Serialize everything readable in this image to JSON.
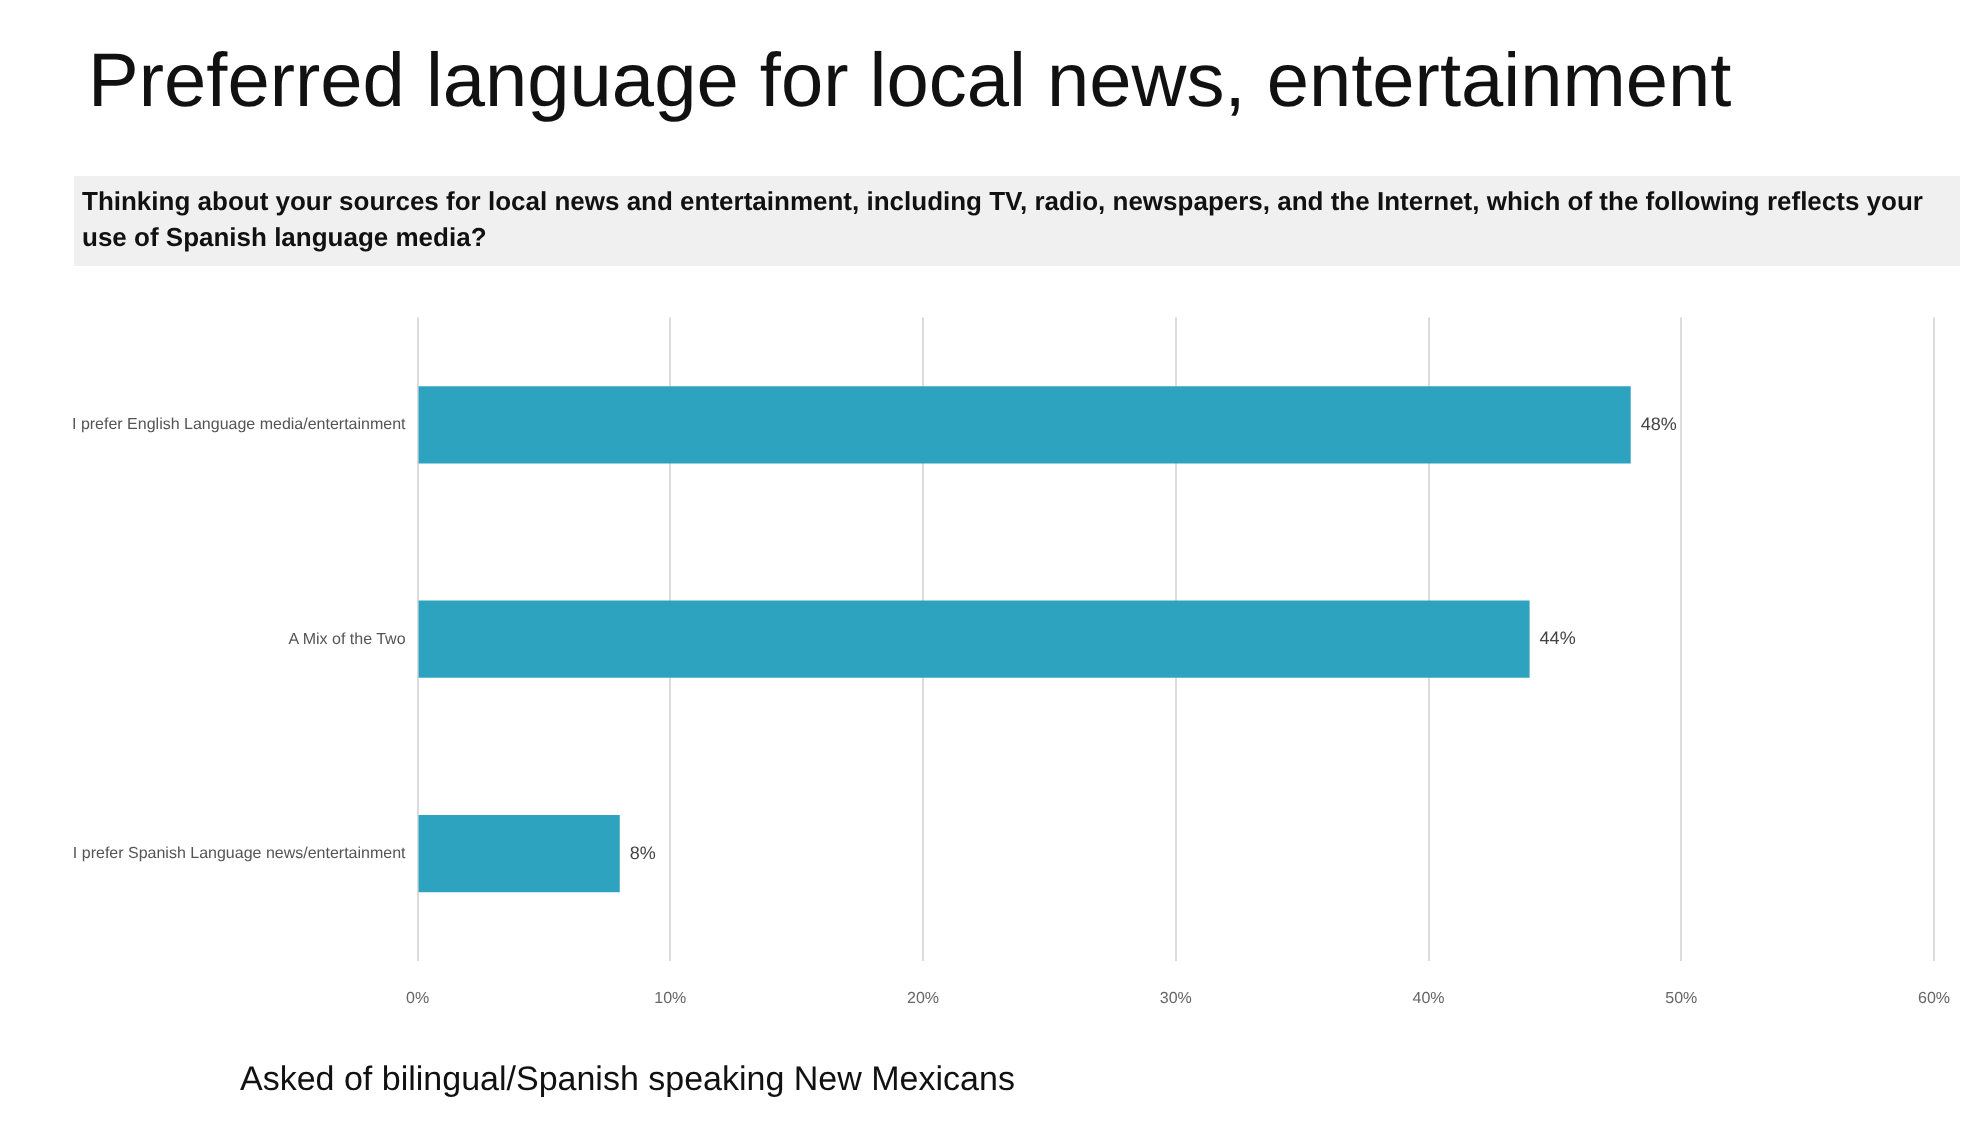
{
  "chart_data": {
    "type": "bar",
    "orientation": "horizontal",
    "title": "Preferred language for local news, entertainment",
    "subtitle": "Thinking about your sources for local news and entertainment, including TV, radio, newspapers, and the Internet, which of the following reflects your use of Spanish language media?",
    "categories": [
      "I prefer English Language media/entertainment",
      "A Mix of the Two",
      "I prefer Spanish Language news/entertainment"
    ],
    "values": [
      48,
      44,
      8
    ],
    "color": "#2ea3bf",
    "value_labels": [
      "48%",
      "44%",
      "8%"
    ],
    "xlim": [
      0,
      60
    ],
    "xticks": [
      {
        "value": 0,
        "label": "0%"
      },
      {
        "value": 10,
        "label": "10%"
      },
      {
        "value": 20,
        "label": "20%"
      },
      {
        "value": 30,
        "label": "30%"
      },
      {
        "value": 40,
        "label": "40%"
      },
      {
        "value": 50,
        "label": "50%"
      },
      {
        "value": 60,
        "label": "60%"
      }
    ],
    "grid": "x",
    "legend": false,
    "annotations": [
      "Asked of bilingual/Spanish speaking New Mexicans"
    ]
  }
}
